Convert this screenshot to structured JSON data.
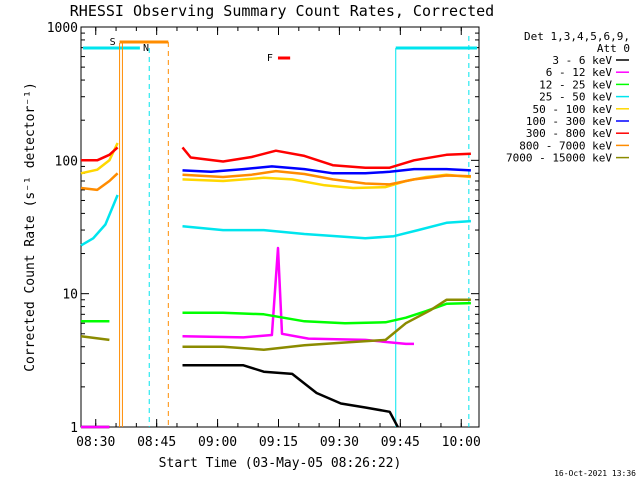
{
  "chart_data": {
    "type": "line",
    "title": "RHESSI Observing Summary Count Rates, Corrected",
    "xlabel": "Start Time (03-May-05 08:26:22)",
    "ylabel": "Corrected Count Rate (s⁻¹ detector⁻¹)",
    "yscale": "log",
    "ylim": [
      1,
      1000
    ],
    "xlim_minutes": [
      0,
      98
    ],
    "x_tick_labels": [
      "08:30",
      "08:45",
      "09:00",
      "09:15",
      "09:30",
      "09:45",
      "10:00"
    ],
    "x_tick_minutes": [
      3.63,
      18.63,
      33.63,
      48.63,
      63.63,
      78.63,
      93.63
    ],
    "y_tick_labels": [
      "1",
      "10",
      "100",
      "1000"
    ],
    "y_tick_values": [
      1,
      10,
      100,
      1000
    ],
    "grid": false,
    "legend_header": [
      "Det 1,3,4,5,6,9,",
      "Att 0"
    ],
    "legend_position": "top-right",
    "footer": "16-Oct-2021 13:36",
    "markers": [
      {
        "label": "S",
        "color": "#ff8c00"
      },
      {
        "label": "N",
        "color": "#00e5ee"
      },
      {
        "label": "F",
        "color": "#ff0000"
      }
    ],
    "series": [
      {
        "name": "3 - 6 keV",
        "color": "#000000",
        "segments": [
          [
            [
              0,
              1
            ],
            [
              7,
              1
            ]
          ],
          [
            [
              25,
              2.9
            ],
            [
              40,
              2.9
            ],
            [
              45,
              2.6
            ],
            [
              52,
              2.5
            ],
            [
              58,
              1.8
            ],
            [
              64,
              1.5
            ],
            [
              70,
              1.4
            ],
            [
              76,
              1.3
            ],
            [
              78,
              1
            ]
          ]
        ]
      },
      {
        "name": "6 - 12 keV",
        "color": "#ff00ff",
        "segments": [
          [
            [
              0,
              1
            ],
            [
              7,
              1
            ]
          ],
          [
            [
              25,
              4.8
            ],
            [
              40,
              4.7
            ],
            [
              47,
              4.9
            ],
            [
              48.5,
              22
            ],
            [
              49.5,
              5
            ],
            [
              56,
              4.6
            ],
            [
              70,
              4.5
            ],
            [
              80,
              4.2
            ],
            [
              82,
              4.2
            ]
          ]
        ]
      },
      {
        "name": "12 - 25 keV",
        "color": "#00ff00",
        "segments": [
          [
            [
              0,
              6.2
            ],
            [
              7,
              6.2
            ]
          ],
          [
            [
              25,
              7.2
            ],
            [
              35,
              7.2
            ],
            [
              45,
              7
            ],
            [
              55,
              6.2
            ],
            [
              65,
              6
            ],
            [
              75,
              6.1
            ],
            [
              80,
              6.6
            ],
            [
              85,
              7.4
            ],
            [
              90,
              8.4
            ],
            [
              96,
              8.5
            ]
          ]
        ]
      },
      {
        "name": "25 - 50 keV",
        "color": "#00e5ee",
        "segments": [
          [
            [
              0,
              23
            ],
            [
              3,
              26
            ],
            [
              6,
              33
            ],
            [
              9,
              55
            ]
          ],
          [
            [
              25,
              32
            ],
            [
              35,
              30
            ],
            [
              45,
              30
            ],
            [
              55,
              28
            ],
            [
              63,
              27
            ],
            [
              70,
              26
            ],
            [
              77,
              27
            ],
            [
              83,
              30
            ],
            [
              90,
              34
            ],
            [
              96,
              35
            ]
          ]
        ]
      },
      {
        "name": "50 - 100 keV",
        "color": "#ffd700",
        "segments": [
          [
            [
              0,
              80
            ],
            [
              4,
              85
            ],
            [
              7,
              100
            ],
            [
              9,
              135
            ]
          ],
          [
            [
              25,
              72
            ],
            [
              35,
              70
            ],
            [
              45,
              74
            ],
            [
              52,
              72
            ],
            [
              60,
              65
            ],
            [
              67,
              62
            ],
            [
              75,
              63
            ],
            [
              80,
              70
            ],
            [
              85,
              75
            ],
            [
              90,
              78
            ],
            [
              96,
              75
            ]
          ]
        ]
      },
      {
        "name": "100 - 300 keV",
        "color": "#0000ff",
        "segments": [
          [
            [
              25,
              84
            ],
            [
              32,
              82
            ],
            [
              40,
              86
            ],
            [
              47,
              90
            ],
            [
              55,
              86
            ],
            [
              62,
              80
            ],
            [
              70,
              80
            ],
            [
              76,
              82
            ],
            [
              82,
              86
            ],
            [
              90,
              86
            ],
            [
              96,
              84
            ]
          ]
        ]
      },
      {
        "name": "300 - 800 keV",
        "color": "#ff0000",
        "segments": [
          [
            [
              0,
              100
            ],
            [
              4,
              100
            ],
            [
              7,
              110
            ],
            [
              9,
              125
            ]
          ],
          [
            [
              25,
              125
            ],
            [
              27,
              105
            ],
            [
              35,
              98
            ],
            [
              42,
              106
            ],
            [
              48,
              118
            ],
            [
              55,
              108
            ],
            [
              62,
              92
            ],
            [
              70,
              88
            ],
            [
              76,
              88
            ],
            [
              82,
              100
            ],
            [
              90,
              110
            ],
            [
              96,
              112
            ]
          ]
        ]
      },
      {
        "name": "800 - 7000 keV",
        "color": "#ff8c00",
        "segments": [
          [
            [
              0,
              62
            ],
            [
              4,
              60
            ],
            [
              7,
              70
            ],
            [
              9,
              80
            ]
          ],
          [
            [
              25,
              78
            ],
            [
              35,
              75
            ],
            [
              42,
              78
            ],
            [
              48,
              83
            ],
            [
              55,
              79
            ],
            [
              62,
              72
            ],
            [
              70,
              67
            ],
            [
              76,
              66
            ],
            [
              82,
              72
            ],
            [
              90,
              77
            ],
            [
              96,
              76
            ]
          ]
        ]
      },
      {
        "name": "7000 - 15000 keV",
        "color": "#8b8b00",
        "segments": [
          [
            [
              0,
              4.8
            ],
            [
              7,
              4.5
            ]
          ],
          [
            [
              25,
              4
            ],
            [
              35,
              4
            ],
            [
              45,
              3.8
            ],
            [
              55,
              4.1
            ],
            [
              65,
              4.3
            ],
            [
              75,
              4.5
            ],
            [
              80,
              6
            ],
            [
              86,
              7.5
            ],
            [
              90,
              9
            ],
            [
              96,
              9
            ]
          ]
        ]
      }
    ]
  }
}
